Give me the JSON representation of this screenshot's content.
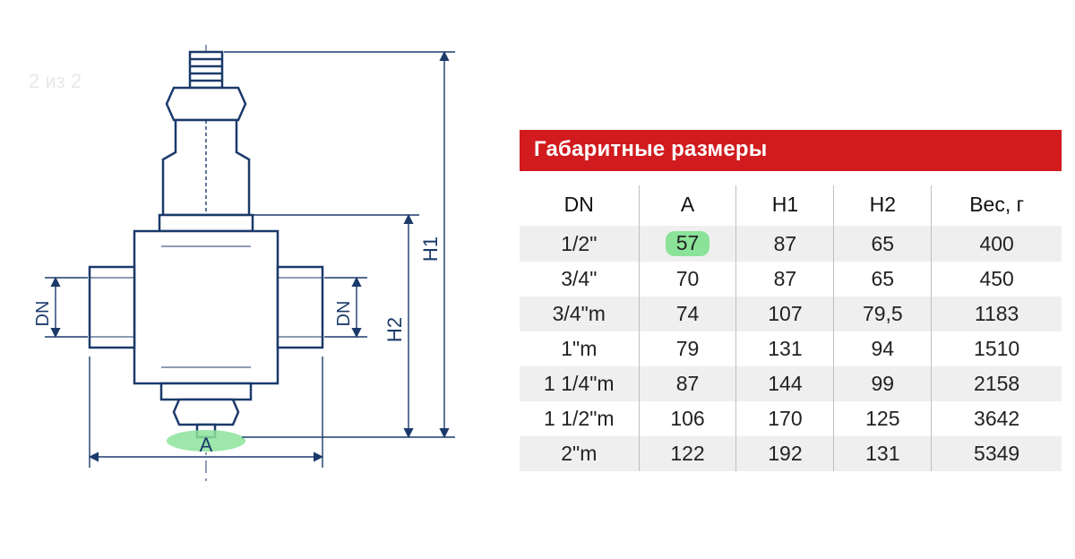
{
  "page_counter": "2 из 2",
  "diagram": {
    "labels": {
      "A": "A",
      "DN_left": "DN",
      "DN_right": "DN",
      "H1": "H1",
      "H2": "H2"
    },
    "colors": {
      "outline": "#1b3a6b",
      "dimension": "#1b3a6b",
      "centerline": "#1b3a6b",
      "highlight_fill": "#8be39a",
      "background": "#ffffff"
    },
    "line_widths": {
      "outline": 2.5,
      "dimension": 1.4,
      "thin": 1
    }
  },
  "table": {
    "title": "Габаритные размеры",
    "title_bg": "#d11b1e",
    "title_color": "#ffffff",
    "border_color": "#bfbfbf",
    "shade_color": "#efefef",
    "text_color": "#222222",
    "header_fontsize": 23,
    "cell_fontsize": 23,
    "highlight_bg": "#8be39a",
    "columns": [
      "DN",
      "A",
      "H1",
      "H2",
      "Вес, г"
    ],
    "col_widths_pct": [
      22,
      18,
      18,
      18,
      24
    ],
    "rows": [
      {
        "shade": true,
        "cells": [
          "1/2\"",
          "57",
          "87",
          "65",
          "400"
        ],
        "highlight_col": 1
      },
      {
        "shade": false,
        "cells": [
          "3/4\"",
          "70",
          "87",
          "65",
          "450"
        ]
      },
      {
        "shade": true,
        "cells": [
          "3/4\"m",
          "74",
          "107",
          "79,5",
          "1183"
        ]
      },
      {
        "shade": false,
        "cells": [
          "1\"m",
          "79",
          "131",
          "94",
          "1510"
        ]
      },
      {
        "shade": true,
        "cells": [
          "1 1/4\"m",
          "87",
          "144",
          "99",
          "2158"
        ]
      },
      {
        "shade": false,
        "cells": [
          "1 1/2\"m",
          "106",
          "170",
          "125",
          "3642"
        ]
      },
      {
        "shade": true,
        "cells": [
          "2\"m",
          "122",
          "192",
          "131",
          "5349"
        ]
      }
    ]
  }
}
